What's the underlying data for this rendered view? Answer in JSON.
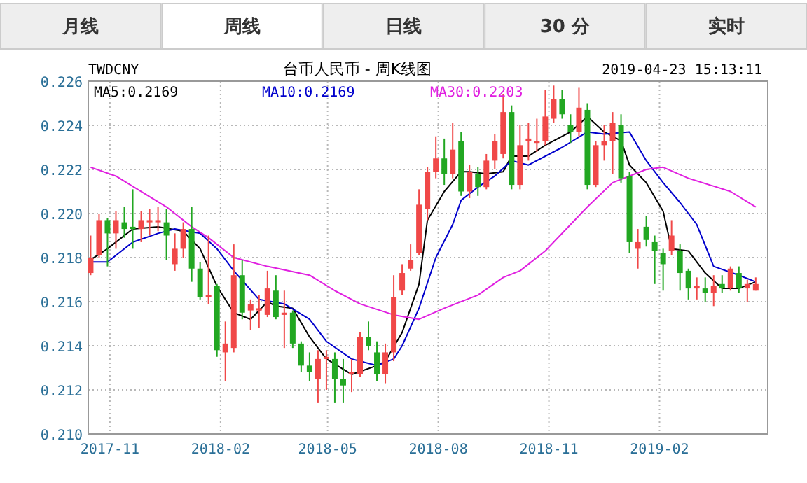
{
  "chart_data": {
    "type": "candlestick",
    "title": "台币人民币 - 周K线图",
    "annotations": [
      "月线",
      "周线",
      "日线",
      "30 分",
      "实时",
      "TWDCNY",
      "2019-04-23 15:13:11"
    ],
    "x": [
      "2017-10-16",
      "2017-10-23",
      "2017-10-30",
      "2017-11-06",
      "2017-11-13",
      "2017-11-20",
      "2017-11-27",
      "2017-12-04",
      "2017-12-11",
      "2017-12-18",
      "2017-12-25",
      "2018-01-01",
      "2018-01-08",
      "2018-01-15",
      "2018-01-22",
      "2018-01-29",
      "2018-02-05",
      "2018-02-12",
      "2018-02-19",
      "2018-02-26",
      "2018-03-05",
      "2018-03-12",
      "2018-03-19",
      "2018-03-26",
      "2018-04-02",
      "2018-04-09",
      "2018-04-16",
      "2018-04-23",
      "2018-04-30",
      "2018-05-07",
      "2018-05-14",
      "2018-05-21",
      "2018-05-28",
      "2018-06-04",
      "2018-06-11",
      "2018-06-18",
      "2018-06-25",
      "2018-07-02",
      "2018-07-09",
      "2018-07-16",
      "2018-07-23",
      "2018-07-30",
      "2018-08-06",
      "2018-08-13",
      "2018-08-20",
      "2018-08-27",
      "2018-09-03",
      "2018-09-10",
      "2018-09-17",
      "2018-09-24",
      "2018-10-01",
      "2018-10-08",
      "2018-10-15",
      "2018-10-22",
      "2018-10-29",
      "2018-11-05",
      "2018-11-12",
      "2018-11-19",
      "2018-11-26",
      "2018-12-03",
      "2018-12-10",
      "2018-12-17",
      "2018-12-24",
      "2018-12-31",
      "2019-01-07",
      "2019-01-14",
      "2019-01-21",
      "2019-01-28",
      "2019-02-04",
      "2019-02-11",
      "2019-02-18",
      "2019-02-25",
      "2019-03-04",
      "2019-03-11",
      "2019-03-18",
      "2019-03-25",
      "2019-04-01",
      "2019-04-08",
      "2019-04-15",
      "2019-04-22"
    ],
    "ohlc": [
      [
        0.2173,
        0.219,
        0.2172,
        0.218
      ],
      [
        0.2181,
        0.22,
        0.218,
        0.2197
      ],
      [
        0.2197,
        0.2198,
        0.2176,
        0.2191
      ],
      [
        0.2191,
        0.2201,
        0.2184,
        0.2197
      ],
      [
        0.2196,
        0.2203,
        0.2189,
        0.2193
      ],
      [
        0.2194,
        0.2211,
        0.2184,
        0.2193
      ],
      [
        0.2193,
        0.2201,
        0.2187,
        0.2197
      ],
      [
        0.2196,
        0.2202,
        0.219,
        0.2197
      ],
      [
        0.2196,
        0.2203,
        0.2192,
        0.2197
      ],
      [
        0.2196,
        0.2202,
        0.2179,
        0.219
      ],
      [
        0.2177,
        0.2191,
        0.2174,
        0.2184
      ],
      [
        0.2184,
        0.2196,
        0.218,
        0.2193
      ],
      [
        0.2193,
        0.2203,
        0.2169,
        0.2175
      ],
      [
        0.2175,
        0.2178,
        0.2161,
        0.2162
      ],
      [
        0.2162,
        0.219,
        0.2159,
        0.2163
      ],
      [
        0.2167,
        0.2168,
        0.2135,
        0.2138
      ],
      [
        0.2137,
        0.2151,
        0.2124,
        0.2141
      ],
      [
        0.2139,
        0.2186,
        0.2137,
        0.2172
      ],
      [
        0.2172,
        0.2179,
        0.2152,
        0.2155
      ],
      [
        0.2156,
        0.2161,
        0.2147,
        0.2159
      ],
      [
        0.2156,
        0.2163,
        0.2148,
        0.2157
      ],
      [
        0.2154,
        0.2174,
        0.2153,
        0.2166
      ],
      [
        0.2165,
        0.2172,
        0.2152,
        0.2153
      ],
      [
        0.2154,
        0.2165,
        0.2139,
        0.2155
      ],
      [
        0.2155,
        0.2156,
        0.2139,
        0.2141
      ],
      [
        0.2141,
        0.2142,
        0.2128,
        0.2131
      ],
      [
        0.2131,
        0.2137,
        0.2124,
        0.2128
      ],
      [
        0.2125,
        0.2138,
        0.2114,
        0.2134
      ],
      [
        0.2134,
        0.2138,
        0.212,
        0.2135
      ],
      [
        0.2134,
        0.2137,
        0.2114,
        0.2125
      ],
      [
        0.2125,
        0.2134,
        0.2114,
        0.2122
      ],
      [
        0.2127,
        0.2134,
        0.2119,
        0.2128
      ],
      [
        0.2127,
        0.2146,
        0.2126,
        0.2144
      ],
      [
        0.2144,
        0.2151,
        0.2138,
        0.214
      ],
      [
        0.2137,
        0.2142,
        0.2124,
        0.2127
      ],
      [
        0.2127,
        0.2141,
        0.2123,
        0.2137
      ],
      [
        0.2137,
        0.2172,
        0.2133,
        0.2162
      ],
      [
        0.2165,
        0.2177,
        0.2163,
        0.2173
      ],
      [
        0.2175,
        0.2186,
        0.2174,
        0.2179
      ],
      [
        0.2182,
        0.2211,
        0.2181,
        0.2204
      ],
      [
        0.2202,
        0.2221,
        0.2197,
        0.2219
      ],
      [
        0.2219,
        0.2235,
        0.2216,
        0.2225
      ],
      [
        0.2225,
        0.2234,
        0.2213,
        0.2218
      ],
      [
        0.2218,
        0.2241,
        0.2216,
        0.2229
      ],
      [
        0.2233,
        0.2237,
        0.2208,
        0.221
      ],
      [
        0.221,
        0.2222,
        0.2207,
        0.2219
      ],
      [
        0.2218,
        0.2221,
        0.2208,
        0.2212
      ],
      [
        0.2212,
        0.2227,
        0.2211,
        0.2224
      ],
      [
        0.2224,
        0.2236,
        0.222,
        0.2233
      ],
      [
        0.2227,
        0.2254,
        0.2225,
        0.2246
      ],
      [
        0.2246,
        0.2249,
        0.2211,
        0.2213
      ],
      [
        0.2213,
        0.224,
        0.2211,
        0.2231
      ],
      [
        0.2233,
        0.2241,
        0.2224,
        0.2234
      ],
      [
        0.2232,
        0.2243,
        0.2228,
        0.2233
      ],
      [
        0.2233,
        0.2256,
        0.2231,
        0.2244
      ],
      [
        0.2243,
        0.2258,
        0.2241,
        0.2252
      ],
      [
        0.2252,
        0.2256,
        0.2243,
        0.2245
      ],
      [
        0.224,
        0.2245,
        0.2232,
        0.2237
      ],
      [
        0.2237,
        0.2257,
        0.2235,
        0.2248
      ],
      [
        0.2247,
        0.225,
        0.2211,
        0.2213
      ],
      [
        0.2213,
        0.2233,
        0.2212,
        0.2231
      ],
      [
        0.2231,
        0.224,
        0.2224,
        0.2233
      ],
      [
        0.2233,
        0.2246,
        0.2218,
        0.2241
      ],
      [
        0.224,
        0.2245,
        0.2214,
        0.2216
      ],
      [
        0.2217,
        0.2219,
        0.2182,
        0.2187
      ],
      [
        0.2184,
        0.2193,
        0.2175,
        0.2187
      ],
      [
        0.2194,
        0.2199,
        0.2185,
        0.2188
      ],
      [
        0.2187,
        0.219,
        0.2168,
        0.2183
      ],
      [
        0.2182,
        0.2184,
        0.2165,
        0.2177
      ],
      [
        0.2183,
        0.2197,
        0.2181,
        0.219
      ],
      [
        0.2183,
        0.2186,
        0.2165,
        0.2173
      ],
      [
        0.2174,
        0.2175,
        0.2161,
        0.2166
      ],
      [
        0.2166,
        0.2171,
        0.2161,
        0.2167
      ],
      [
        0.2166,
        0.2171,
        0.216,
        0.2164
      ],
      [
        0.2164,
        0.2172,
        0.2158,
        0.2167
      ],
      [
        0.2168,
        0.2172,
        0.2164,
        0.2166
      ],
      [
        0.2166,
        0.2176,
        0.2165,
        0.2175
      ],
      [
        0.2173,
        0.2176,
        0.2164,
        0.2166
      ],
      [
        0.2166,
        0.217,
        0.216,
        0.2168
      ],
      [
        0.2165,
        0.2171,
        0.2165,
        0.2168
      ]
    ],
    "colors": [
      "#f04848",
      "#f04848",
      "#22a722",
      "#f04848",
      "#22a722",
      "#22a722",
      "#f04848",
      "#f04848",
      "#f04848",
      "#22a722",
      "#f04848",
      "#f04848",
      "#22a722",
      "#22a722",
      "#f04848",
      "#22a722",
      "#f04848",
      "#f04848",
      "#22a722",
      "#f04848",
      "#f04848",
      "#f04848",
      "#22a722",
      "#f04848",
      "#22a722",
      "#22a722",
      "#22a722",
      "#f04848",
      "#f04848",
      "#22a722",
      "#22a722",
      "#f04848",
      "#f04848",
      "#22a722",
      "#22a722",
      "#f04848",
      "#f04848",
      "#f04848",
      "#f04848",
      "#f04848",
      "#f04848",
      "#f04848",
      "#22a722",
      "#f04848",
      "#22a722",
      "#f04848",
      "#22a722",
      "#f04848",
      "#f04848",
      "#f04848",
      "#22a722",
      "#f04848",
      "#f04848",
      "#f04848",
      "#f04848",
      "#f04848",
      "#22a722",
      "#22a722",
      "#f04848",
      "#22a722",
      "#f04848",
      "#f04848",
      "#f04848",
      "#22a722",
      "#22a722",
      "#f04848",
      "#22a722",
      "#22a722",
      "#22a722",
      "#f04848",
      "#22a722",
      "#22a722",
      "#f04848",
      "#22a722",
      "#f04848",
      "#22a722",
      "#f04848",
      "#22a722",
      "#f04848",
      "#f04848"
    ],
    "series": [
      {
        "name": "MA5:0.2169",
        "type": "line",
        "color": "#000000",
        "x": [
          "2017-10-16",
          "2017-10-30",
          "2017-11-20",
          "2017-12-11",
          "2018-01-01",
          "2018-01-15",
          "2018-01-29",
          "2018-02-12",
          "2018-02-26",
          "2018-03-12",
          "2018-03-19",
          "2018-04-02",
          "2018-04-16",
          "2018-04-30",
          "2018-05-21",
          "2018-06-11",
          "2018-06-18",
          "2018-07-02",
          "2018-07-16",
          "2018-07-23",
          "2018-08-06",
          "2018-08-20",
          "2018-08-27",
          "2018-09-10",
          "2018-09-24",
          "2018-10-01",
          "2018-10-15",
          "2018-10-29",
          "2018-11-19",
          "2018-12-03",
          "2018-12-17",
          "2018-12-31",
          "2019-01-07",
          "2019-01-21",
          "2019-02-04",
          "2019-02-11",
          "2019-02-25",
          "2019-03-11",
          "2019-03-25",
          "2019-04-08",
          "2019-04-22"
        ],
        "values": [
          0.2179,
          0.2184,
          0.2193,
          0.2194,
          0.2192,
          0.2184,
          0.2167,
          0.2155,
          0.2152,
          0.216,
          0.2158,
          0.2157,
          0.2144,
          0.2134,
          0.2127,
          0.2131,
          0.2133,
          0.2146,
          0.2168,
          0.2197,
          0.221,
          0.2219,
          0.2219,
          0.2218,
          0.2219,
          0.2226,
          0.2226,
          0.2231,
          0.2237,
          0.2244,
          0.2237,
          0.2233,
          0.2222,
          0.2214,
          0.2201,
          0.2184,
          0.2183,
          0.2173,
          0.2166,
          0.2166,
          0.2169
        ]
      },
      {
        "name": "MA10:0.2169",
        "type": "line",
        "color": "#0000cc",
        "x": [
          "2017-10-16",
          "2017-10-30",
          "2017-11-20",
          "2017-12-11",
          "2017-12-25",
          "2018-01-15",
          "2018-01-29",
          "2018-02-12",
          "2018-03-05",
          "2018-03-26",
          "2018-04-16",
          "2018-04-30",
          "2018-05-21",
          "2018-06-11",
          "2018-06-25",
          "2018-07-02",
          "2018-07-16",
          "2018-07-30",
          "2018-08-13",
          "2018-08-20",
          "2018-09-03",
          "2018-09-17",
          "2018-10-01",
          "2018-10-15",
          "2018-11-12",
          "2018-12-03",
          "2018-12-17",
          "2019-01-07",
          "2019-01-21",
          "2019-02-04",
          "2019-02-18",
          "2019-03-04",
          "2019-03-18",
          "2019-04-08",
          "2019-04-22"
        ],
        "values": [
          0.2178,
          0.2178,
          0.2187,
          0.2191,
          0.2193,
          0.2191,
          0.2184,
          0.2174,
          0.2161,
          0.2159,
          0.2152,
          0.2142,
          0.2134,
          0.2131,
          0.2134,
          0.214,
          0.2157,
          0.218,
          0.2195,
          0.2206,
          0.2212,
          0.2217,
          0.2224,
          0.2222,
          0.223,
          0.2237,
          0.2236,
          0.2237,
          0.2224,
          0.2214,
          0.2205,
          0.2195,
          0.2176,
          0.2172,
          0.2169
        ]
      },
      {
        "name": "MA30:0.2203",
        "type": "line",
        "color": "#e020e0",
        "x": [
          "2017-10-16",
          "2017-11-06",
          "2017-12-18",
          "2018-01-08",
          "2018-01-22",
          "2018-02-12",
          "2018-03-12",
          "2018-04-16",
          "2018-05-07",
          "2018-05-28",
          "2018-06-25",
          "2018-07-16",
          "2018-08-06",
          "2018-09-03",
          "2018-09-24",
          "2018-10-08",
          "2018-10-29",
          "2018-12-03",
          "2018-12-24",
          "2019-01-21",
          "2019-02-04",
          "2019-02-25",
          "2019-04-01",
          "2019-04-22"
        ],
        "values": [
          0.2221,
          0.2217,
          0.2203,
          0.2194,
          0.2189,
          0.218,
          0.2176,
          0.2172,
          0.2165,
          0.2159,
          0.2154,
          0.2152,
          0.2157,
          0.2163,
          0.2171,
          0.2174,
          0.2183,
          0.2203,
          0.2214,
          0.222,
          0.2221,
          0.2216,
          0.221,
          0.2203
        ]
      }
    ],
    "legend": "top left",
    "grid": true,
    "xlim": [
      "2017-10-14",
      "2019-05-02"
    ],
    "xticks": [
      "2017-11",
      "2018-02",
      "2018-05",
      "2018-08",
      "2018-11",
      "2019-02"
    ],
    "ylim": [
      0.21,
      0.226
    ],
    "yticks": [
      {
        "value": 0.21,
        "label": "0.210"
      },
      {
        "value": 0.212,
        "label": "0.212"
      },
      {
        "value": 0.214,
        "label": "0.214"
      },
      {
        "value": 0.216,
        "label": "0.216"
      },
      {
        "value": 0.218,
        "label": "0.218"
      },
      {
        "value": 0.22,
        "label": "0.220"
      },
      {
        "value": 0.222,
        "label": "0.222"
      },
      {
        "value": 0.224,
        "label": "0.224"
      },
      {
        "value": 0.226,
        "label": "0.226"
      }
    ]
  }
}
